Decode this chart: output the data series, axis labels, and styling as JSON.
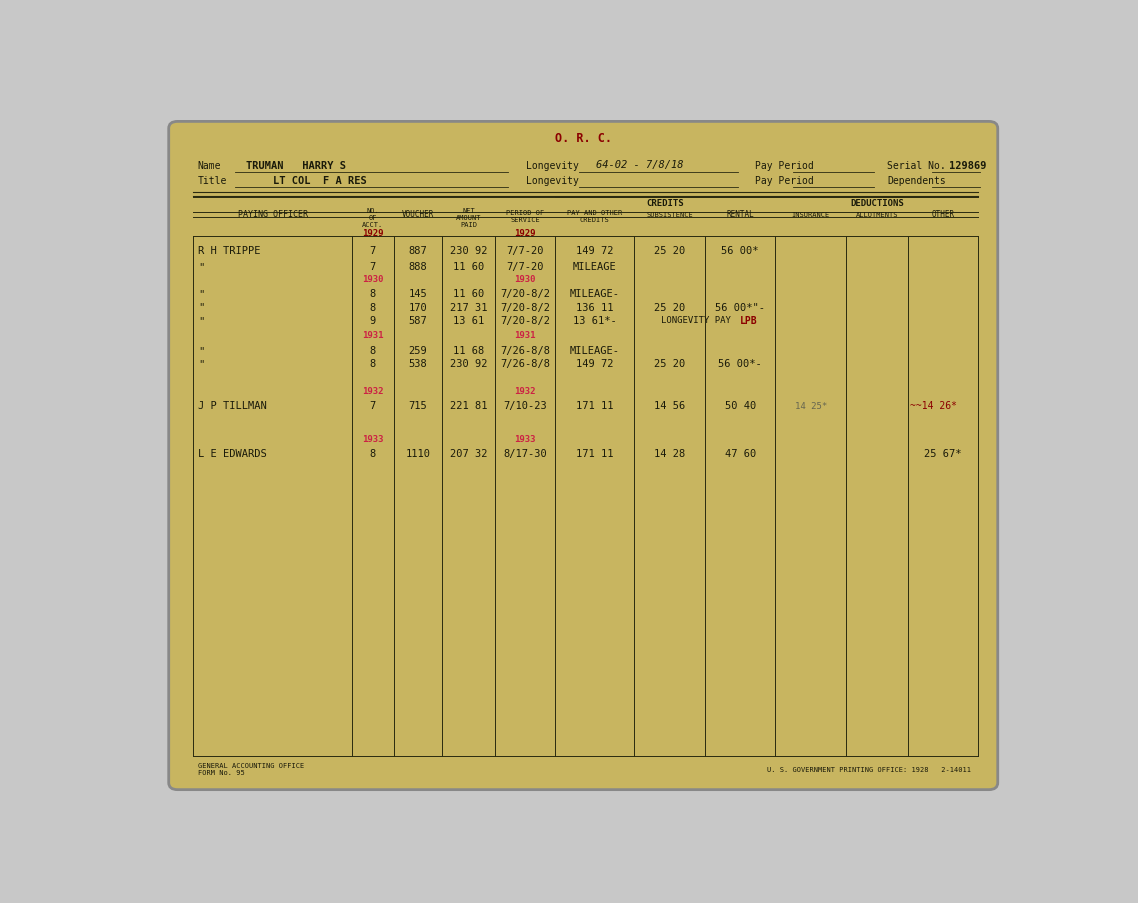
{
  "bg_outer": "#c8c8c8",
  "bg_card": "#c8b560",
  "card_border": "#888888",
  "text_color": "#1a1a0a",
  "red_text": "#8b0000",
  "pink_red": "#cc2244",
  "line_color": "#2a2a10",
  "header_title": "O. R. C.",
  "name_label": "Name",
  "name_value": "TRUMAN   HARRY S",
  "longevity_label": "Longevity",
  "longevity_value": "64-02 - 7/8/18",
  "pay_period_label": "Pay Period",
  "serial_label": "Serial No.",
  "serial_value": "129869",
  "title_label": "Title",
  "title_value": "LT COL  F A RES",
  "longevity_label2": "Longevity",
  "pay_period_label2": "Pay Period",
  "dependents_label": "Dependents",
  "credits_label": "CREDITS",
  "deductions_label": "DEDUCTIONS",
  "year_1929": "1929",
  "footer_left": "GENERAL ACCOUNTING OFFICE\nFORM No. 95",
  "footer_right": "U. S. GOVERNMENT PRINTING OFFICE: 1928   2-14011",
  "rows": [
    {
      "officer": "R H TRIPPE",
      "mo": "7",
      "voucher": "887",
      "net": "230 92",
      "period": "7/7-20",
      "pay": "149 72",
      "sub": "25 20",
      "rental": "56 00*",
      "ins": "",
      "allot": "",
      "other": "",
      "year_mo": null,
      "year_period": null
    },
    {
      "officer": "\"",
      "mo": "7",
      "voucher": "888",
      "net": "11 60",
      "period": "7/7-20",
      "pay": "MILEAGE",
      "sub": "",
      "rental": "",
      "ins": "",
      "allot": "",
      "other": "",
      "year_mo": null,
      "year_period": null
    },
    {
      "officer": "\"",
      "mo": "8",
      "voucher": "145",
      "net": "11 60",
      "period": "7/20-8/2",
      "pay": "MILEAGE-",
      "sub": "",
      "rental": "",
      "ins": "",
      "allot": "",
      "other": "",
      "year_mo": "1930",
      "year_period": "1930"
    },
    {
      "officer": "\"",
      "mo": "8",
      "voucher": "170",
      "net": "217 31",
      "period": "7/20-8/2",
      "pay": "136 11",
      "sub": "25 20",
      "rental": "56 00*\"-",
      "ins": "",
      "allot": "",
      "other": "",
      "year_mo": null,
      "year_period": null
    },
    {
      "officer": "\"",
      "mo": "9",
      "voucher": "587",
      "net": "13 61",
      "period": "7/20-8/2",
      "pay": "13 61*-",
      "sub": "LONGEVITY PAY",
      "rental": "LPB",
      "ins": "",
      "allot": "",
      "other": "",
      "year_mo": null,
      "year_period": null
    },
    {
      "officer": "\"",
      "mo": "8",
      "voucher": "259",
      "net": "11 68",
      "period": "7/26-8/8",
      "pay": "MILEAGE-",
      "sub": "",
      "rental": "",
      "ins": "",
      "allot": "",
      "other": "",
      "year_mo": "1931",
      "year_period": "1931"
    },
    {
      "officer": "\"",
      "mo": "8",
      "voucher": "538",
      "net": "230 92",
      "period": "7/26-8/8",
      "pay": "149 72",
      "sub": "25 20",
      "rental": "56 00*-",
      "ins": "",
      "allot": "",
      "other": "",
      "year_mo": null,
      "year_period": null
    },
    {
      "officer": "J P TILLMAN",
      "mo": "7",
      "voucher": "715",
      "net": "221 81",
      "period": "7/10-23",
      "pay": "171 11",
      "sub": "14 56",
      "rental": "50 40",
      "ins": "14 25*",
      "allot": "",
      "other": "14 26*",
      "year_mo": "1932",
      "year_period": "1932"
    },
    {
      "officer": "L E EDWARDS",
      "mo": "8",
      "voucher": "1110",
      "net": "207 32",
      "period": "8/17-30",
      "pay": "171 11",
      "sub": "14 28",
      "rental": "47 60",
      "ins": "",
      "allot": "",
      "other": "25 67*",
      "year_mo": "1933",
      "year_period": "1933"
    }
  ]
}
